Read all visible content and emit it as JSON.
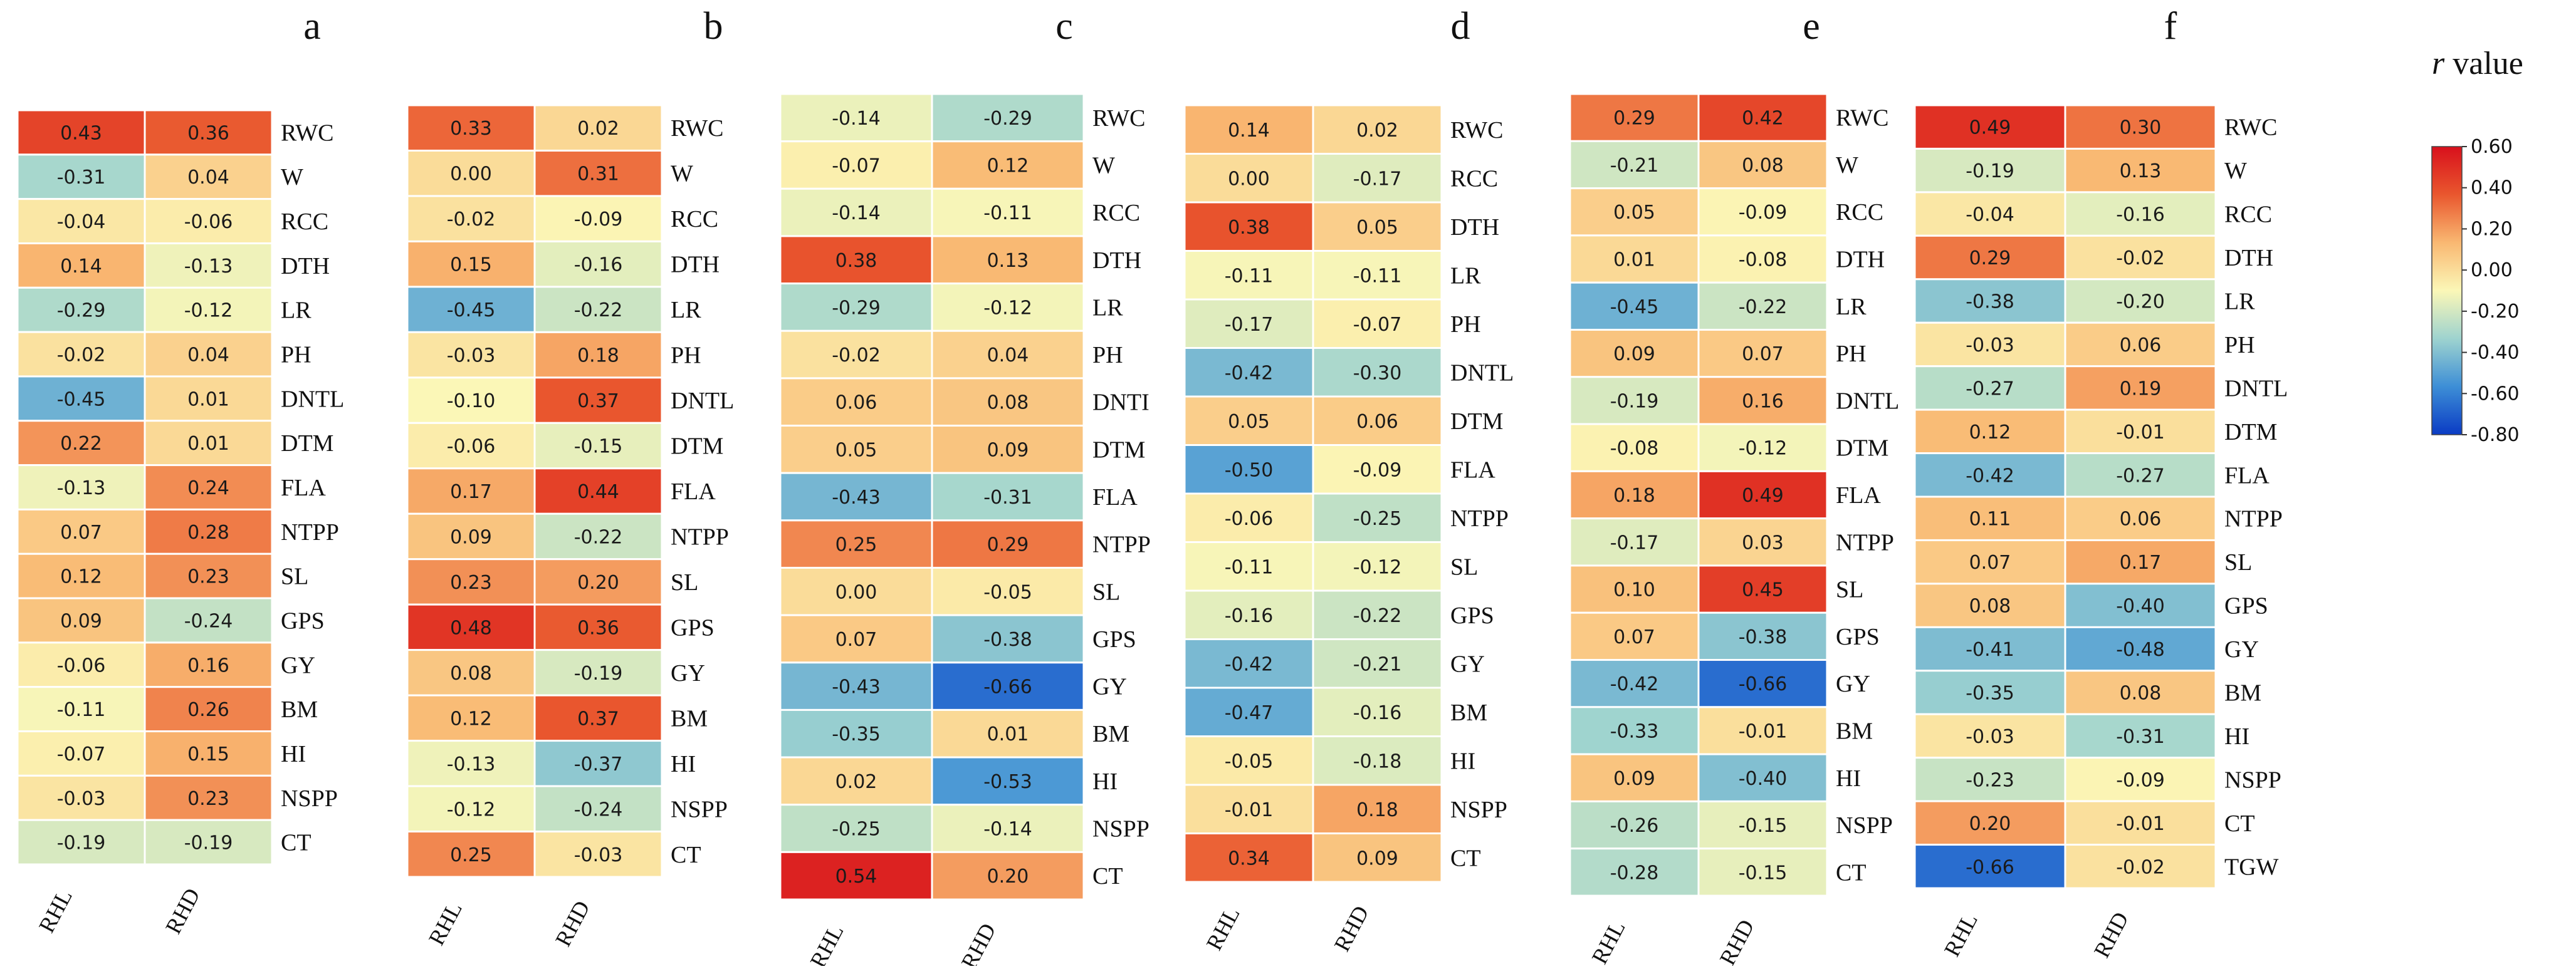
{
  "chart_data": {
    "type": "heatmap",
    "colorbar": {
      "title_italic": "r",
      "title_rest": " value",
      "ticks": [
        "0.60",
        "0.40",
        "0.20",
        "0.00",
        "-0.20",
        "-0.40",
        "-0.60",
        "-0.80"
      ],
      "range": [
        -0.8,
        0.6
      ],
      "colors": [
        "#0a3bc4",
        "#3d8ed6",
        "#9ed3cf",
        "#fbf7b7",
        "#f9b872",
        "#e9572e",
        "#d8101c"
      ]
    },
    "panels": [
      {
        "label": "a",
        "columns": [
          "RHL",
          "RHD"
        ],
        "rows": [
          "RWC",
          "W",
          "RCC",
          "DTH",
          "LR",
          "PH",
          "DNTL",
          "DTM",
          "FLA",
          "NTPP",
          "SL",
          "GPS",
          "GY",
          "BM",
          "HI",
          "NSPP",
          "CT"
        ],
        "values": [
          [
            0.43,
            0.36
          ],
          [
            -0.31,
            0.04
          ],
          [
            -0.04,
            -0.06
          ],
          [
            0.14,
            -0.13
          ],
          [
            -0.29,
            -0.12
          ],
          [
            -0.02,
            0.04
          ],
          [
            -0.45,
            0.01
          ],
          [
            0.22,
            0.01
          ],
          [
            -0.13,
            0.24
          ],
          [
            0.07,
            0.28
          ],
          [
            0.12,
            0.23
          ],
          [
            0.09,
            -0.24
          ],
          [
            -0.06,
            0.16
          ],
          [
            -0.11,
            0.26
          ],
          [
            -0.07,
            0.15
          ],
          [
            -0.03,
            0.23
          ],
          [
            -0.19,
            -0.19
          ]
        ],
        "texts": [
          [
            "0.43",
            "0.36"
          ],
          [
            "-0.31",
            "0.04"
          ],
          [
            "-0.04",
            "-0.06"
          ],
          [
            "0.14",
            "-0.13"
          ],
          [
            "-0.29",
            "-0.12"
          ],
          [
            "-0.02",
            "0.04"
          ],
          [
            "-0.45",
            "0.01"
          ],
          [
            "0.22",
            "0.01"
          ],
          [
            "-0.13",
            "0.24"
          ],
          [
            "0.07",
            "0.28"
          ],
          [
            "0.12",
            "0.23"
          ],
          [
            "0.09",
            "-0.24"
          ],
          [
            "-0.06",
            "0.16"
          ],
          [
            "-0.11",
            "0.26"
          ],
          [
            "-0.07",
            "0.15"
          ],
          [
            "-0.03",
            "0.23"
          ],
          [
            "-0.19",
            "-0.19"
          ]
        ]
      },
      {
        "label": "b",
        "columns": [
          "RHL",
          "RHD"
        ],
        "rows": [
          "RWC",
          "W",
          "RCC",
          "DTH",
          "LR",
          "PH",
          "DNTL",
          "DTM",
          "FLA",
          "NTPP",
          "SL",
          "GPS",
          "GY",
          "BM",
          "HI",
          "NSPP",
          "CT"
        ],
        "values": [
          [
            0.33,
            0.02
          ],
          [
            0.0,
            0.31
          ],
          [
            -0.02,
            -0.09
          ],
          [
            0.15,
            -0.16
          ],
          [
            -0.45,
            -0.22
          ],
          [
            -0.03,
            0.18
          ],
          [
            -0.1,
            0.37
          ],
          [
            -0.06,
            -0.15
          ],
          [
            0.17,
            0.44
          ],
          [
            0.09,
            -0.22
          ],
          [
            0.23,
            0.2
          ],
          [
            0.48,
            0.36
          ],
          [
            0.08,
            -0.19
          ],
          [
            0.12,
            0.37
          ],
          [
            -0.13,
            -0.37
          ],
          [
            -0.12,
            -0.24
          ],
          [
            0.25,
            -0.03
          ]
        ],
        "texts": [
          [
            "0.33",
            "0.02"
          ],
          [
            "0.00",
            "0.31"
          ],
          [
            "-0.02",
            "-0.09"
          ],
          [
            "0.15",
            "-0.16"
          ],
          [
            "-0.45",
            "-0.22"
          ],
          [
            "-0.03",
            "0.18"
          ],
          [
            "-0.10",
            "0.37"
          ],
          [
            "-0.06",
            "-0.15"
          ],
          [
            "0.17",
            "0.44"
          ],
          [
            "0.09",
            "-0.22"
          ],
          [
            "0.23",
            "0.20"
          ],
          [
            "0.48",
            "0.36"
          ],
          [
            "0.08",
            "-0.19"
          ],
          [
            "0.12",
            "0.37"
          ],
          [
            "-0.13",
            "-0.37"
          ],
          [
            "-0.12",
            "-0.24"
          ],
          [
            "0.25",
            "-0.03"
          ]
        ]
      },
      {
        "label": "c",
        "columns": [
          "RHL",
          "RHD"
        ],
        "rows": [
          "RWC",
          "W",
          "RCC",
          "DTH",
          "LR",
          "PH",
          "DNTI",
          "DTM",
          "FLA",
          "NTPP",
          "SL",
          "GPS",
          "GY",
          "BM",
          "HI",
          "NSPP",
          "CT"
        ],
        "values": [
          [
            -0.14,
            -0.29
          ],
          [
            -0.07,
            0.12
          ],
          [
            -0.14,
            -0.11
          ],
          [
            0.38,
            0.13
          ],
          [
            -0.29,
            -0.12
          ],
          [
            -0.02,
            0.04
          ],
          [
            0.06,
            0.08
          ],
          [
            0.05,
            0.09
          ],
          [
            -0.43,
            -0.31
          ],
          [
            0.25,
            0.29
          ],
          [
            0.0,
            -0.05
          ],
          [
            0.07,
            -0.38
          ],
          [
            -0.43,
            -0.66
          ],
          [
            -0.35,
            0.01
          ],
          [
            0.02,
            -0.53
          ],
          [
            -0.25,
            -0.14
          ],
          [
            0.54,
            0.2
          ]
        ],
        "texts": [
          [
            "-0.14",
            "-0.29"
          ],
          [
            "-0.07",
            "0.12"
          ],
          [
            "-0.14",
            "-0.11"
          ],
          [
            "0.38",
            "0.13"
          ],
          [
            "-0.29",
            "-0.12"
          ],
          [
            "-0.02",
            "0.04"
          ],
          [
            "0.06",
            "0.08"
          ],
          [
            "0.05",
            "0.09"
          ],
          [
            "-0.43",
            "-0.31"
          ],
          [
            "0.25",
            "0.29"
          ],
          [
            "0.00",
            "-0.05"
          ],
          [
            "0.07",
            "-0.38"
          ],
          [
            "-0.43",
            "-0.66"
          ],
          [
            "-0.35",
            "0.01"
          ],
          [
            "0.02",
            "-0.53"
          ],
          [
            "-0.25",
            "-0.14"
          ],
          [
            "0.54",
            "0.20"
          ]
        ]
      },
      {
        "label": "d",
        "columns": [
          "RHL",
          "RHD"
        ],
        "rows": [
          "RWC",
          "RCC",
          "DTH",
          "LR",
          "PH",
          "DNTL",
          "DTM",
          "FLA",
          "NTPP",
          "SL",
          "GPS",
          "GY",
          "BM",
          "HI",
          "NSPP",
          "CT"
        ],
        "values": [
          [
            0.14,
            0.02
          ],
          [
            0.0,
            -0.17
          ],
          [
            0.38,
            0.05
          ],
          [
            -0.11,
            -0.11
          ],
          [
            -0.17,
            -0.07
          ],
          [
            -0.42,
            -0.3
          ],
          [
            0.05,
            0.06
          ],
          [
            -0.5,
            -0.09
          ],
          [
            -0.06,
            -0.25
          ],
          [
            -0.11,
            -0.12
          ],
          [
            -0.16,
            -0.22
          ],
          [
            -0.42,
            -0.21
          ],
          [
            -0.47,
            -0.16
          ],
          [
            -0.05,
            -0.18
          ],
          [
            -0.01,
            0.18
          ],
          [
            0.34,
            0.09
          ]
        ],
        "texts": [
          [
            "0.14",
            "0.02"
          ],
          [
            "0.00",
            "-0.17"
          ],
          [
            "0.38",
            "0.05"
          ],
          [
            "-0.11",
            "-0.11"
          ],
          [
            "-0.17",
            "-0.07"
          ],
          [
            "-0.42",
            "-0.30"
          ],
          [
            "0.05",
            "0.06"
          ],
          [
            "-0.50",
            "-0.09"
          ],
          [
            "-0.06",
            "-0.25"
          ],
          [
            "-0.11",
            "-0.12"
          ],
          [
            "-0.16",
            "-0.22"
          ],
          [
            "-0.42",
            "-0.21"
          ],
          [
            "-0.47",
            "-0.16"
          ],
          [
            "-0.05",
            "-0.18"
          ],
          [
            "-0.01",
            "0.18"
          ],
          [
            "0.34",
            "0.09"
          ]
        ]
      },
      {
        "label": "e",
        "columns": [
          "RHL",
          "RHD"
        ],
        "rows": [
          "RWC",
          "W",
          "RCC",
          "DTH",
          "LR",
          "PH",
          "DNTL",
          "DTM",
          "FLA",
          "NTPP",
          "SL",
          "GPS",
          "GY",
          "BM",
          "HI",
          "NSPP",
          "CT"
        ],
        "values": [
          [
            0.29,
            0.42
          ],
          [
            -0.21,
            0.08
          ],
          [
            0.05,
            -0.09
          ],
          [
            0.01,
            -0.08
          ],
          [
            -0.45,
            -0.22
          ],
          [
            0.09,
            0.07
          ],
          [
            -0.19,
            0.16
          ],
          [
            -0.08,
            -0.12
          ],
          [
            0.18,
            0.49
          ],
          [
            -0.17,
            0.03
          ],
          [
            0.1,
            0.45
          ],
          [
            0.07,
            -0.38
          ],
          [
            -0.42,
            -0.66
          ],
          [
            -0.33,
            -0.01
          ],
          [
            0.09,
            -0.4
          ],
          [
            -0.26,
            -0.15
          ],
          [
            -0.28,
            -0.15
          ]
        ],
        "texts": [
          [
            "0.29",
            "0.42"
          ],
          [
            "-0.21",
            "0.08"
          ],
          [
            "0.05",
            "-0.09"
          ],
          [
            "0.01",
            "-0.08"
          ],
          [
            "-0.45",
            "-0.22"
          ],
          [
            "0.09",
            "0.07"
          ],
          [
            "-0.19",
            "0.16"
          ],
          [
            "-0.08",
            "-0.12"
          ],
          [
            "0.18",
            "0.49"
          ],
          [
            "-0.17",
            "0.03"
          ],
          [
            "0.10",
            "0.45"
          ],
          [
            "0.07",
            "-0.38"
          ],
          [
            "-0.42",
            "-0.66"
          ],
          [
            "-0.33",
            "-0.01"
          ],
          [
            "0.09",
            "-0.40"
          ],
          [
            "-0.26",
            "-0.15"
          ],
          [
            "-0.28",
            "-0.15"
          ]
        ]
      },
      {
        "label": "f",
        "columns": [
          "RHL",
          "RHD"
        ],
        "rows": [
          "RWC",
          "W",
          "RCC",
          "DTH",
          "LR",
          "PH",
          "DNTL",
          "DTM",
          "FLA",
          "NTPP",
          "SL",
          "GPS",
          "GY",
          "BM",
          "HI",
          "NSPP",
          "CT",
          "TGW"
        ],
        "values": [
          [
            0.49,
            0.3
          ],
          [
            -0.19,
            0.13
          ],
          [
            -0.04,
            -0.16
          ],
          [
            0.29,
            -0.02
          ],
          [
            -0.38,
            -0.2
          ],
          [
            -0.03,
            0.06
          ],
          [
            -0.27,
            0.19
          ],
          [
            0.12,
            -0.01
          ],
          [
            -0.42,
            -0.27
          ],
          [
            0.11,
            0.06
          ],
          [
            0.07,
            0.17
          ],
          [
            0.08,
            -0.4
          ],
          [
            -0.41,
            -0.48
          ],
          [
            -0.35,
            0.08
          ],
          [
            -0.03,
            -0.31
          ],
          [
            -0.23,
            -0.09
          ],
          [
            0.2,
            -0.01
          ],
          [
            -0.66,
            -0.02
          ]
        ],
        "texts": [
          [
            "0.49",
            "0.30"
          ],
          [
            "-0.19",
            "0.13"
          ],
          [
            "-0.04",
            "-0.16"
          ],
          [
            "0.29",
            "-0.02"
          ],
          [
            "-0.38",
            "-0.20"
          ],
          [
            "-0.03",
            "0.06"
          ],
          [
            "-0.27",
            "0.19"
          ],
          [
            "0.12",
            "-0.01"
          ],
          [
            "-0.42",
            "-0.27"
          ],
          [
            "0.11",
            "0.06"
          ],
          [
            "0.07",
            "0.17"
          ],
          [
            "0.08",
            "-0.40"
          ],
          [
            "-0.41",
            "-0.48"
          ],
          [
            "-0.35",
            "0.08"
          ],
          [
            "-0.03",
            "-0.31"
          ],
          [
            "-0.23",
            "-0.09"
          ],
          [
            "0.20",
            "-0.01"
          ],
          [
            "-0.66",
            "-0.02"
          ]
        ]
      }
    ]
  }
}
